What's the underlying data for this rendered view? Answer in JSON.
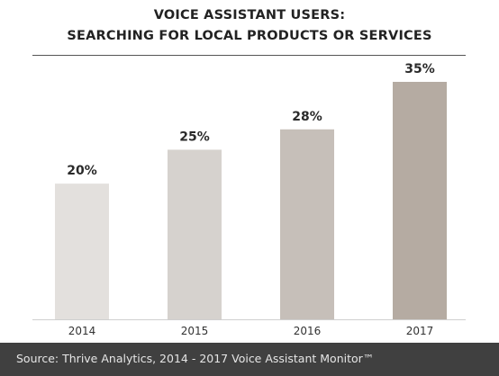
{
  "title_line1": "VOICE ASSISTANT USERS:",
  "title_line2": "SEARCHING FOR LOCAL PRODUCTS OR SERVICES",
  "source": "Source: Thrive Analytics, 2014 - 2017 Voice Assistant Monitor™",
  "chart_data": {
    "type": "bar",
    "categories": [
      "2014",
      "2015",
      "2016",
      "2017"
    ],
    "values": [
      20,
      25,
      28,
      35
    ],
    "value_labels": [
      "20%",
      "25%",
      "28%",
      "35%"
    ],
    "title": "VOICE ASSISTANT USERS: SEARCHING FOR LOCAL PRODUCTS OR SERVICES",
    "xlabel": "",
    "ylabel": "",
    "ylim": [
      0,
      35
    ],
    "grid": false,
    "legend": "none",
    "colors": [
      "#e3e0dd",
      "#d6d2ce",
      "#c6bfb9",
      "#b5aba2"
    ]
  }
}
